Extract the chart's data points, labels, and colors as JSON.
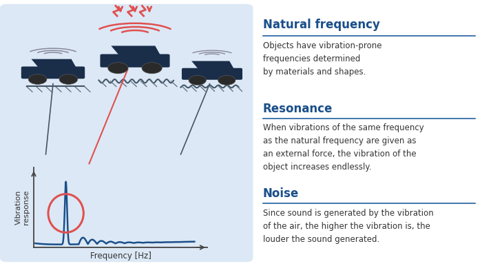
{
  "bg_color": "#ffffff",
  "left_panel_color": "#dce8f5",
  "title1": "Natural frequency",
  "title2": "Resonance",
  "title3": "Noise",
  "desc1": "Objects have vibration-prone\nfrequencies determined\nby materials and shapes.",
  "desc2": "When vibrations of the same frequency\nas the natural frequency are given as\nan external force, the vibration of the\nobject increases endlessly.",
  "desc3": "Since sound is generated by the vibration\nof the air, the higher the vibration is, the\nlouder the sound generated.",
  "header_color": "#1a4f8a",
  "divider_color": "#2060a0",
  "text_color": "#333333",
  "car_color": "#1a2e4a",
  "vibration_line_color": "#1a4f8a",
  "resonance_circle_color": "#e05050",
  "arrow_color": "#555555",
  "xlabel": "Frequency [Hz]",
  "ylabel": "Vibration\nresponse"
}
